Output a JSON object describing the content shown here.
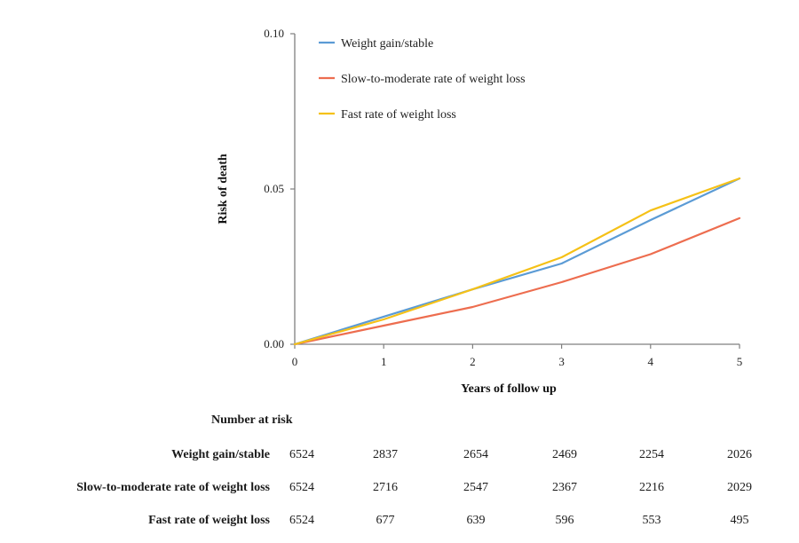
{
  "chart_data": {
    "type": "line",
    "title": "",
    "xlabel": "Years of follow up",
    "ylabel": "Risk of death",
    "xlim": [
      0,
      5
    ],
    "ylim": [
      0,
      0.1
    ],
    "x_ticks": [
      "0",
      "1",
      "2",
      "3",
      "4",
      "5"
    ],
    "y_ticks": [
      "0.00",
      "0.05",
      "0.10"
    ],
    "grid": false,
    "legend_position": "top-left",
    "x": [
      0,
      1,
      2,
      3,
      4,
      5
    ],
    "series": [
      {
        "name": "Weight gain/stable",
        "color": "#5b9bd5",
        "values": [
          0,
          0.0089,
          0.0177,
          0.026,
          0.04,
          0.0534
        ]
      },
      {
        "name": "Slow-to-moderate rate of weight loss",
        "color": "#ed6d4f",
        "values": [
          0,
          0.006,
          0.012,
          0.02,
          0.029,
          0.0406
        ]
      },
      {
        "name": "Fast rate of weight loss",
        "color": "#f5c117",
        "values": [
          0,
          0.008,
          0.0177,
          0.028,
          0.0431,
          0.0534
        ]
      }
    ]
  },
  "risk_table": {
    "title": "Number at risk",
    "rows": [
      {
        "label": "Weight gain/stable",
        "values": [
          "6524",
          "2837",
          "2654",
          "2469",
          "2254",
          "2026"
        ]
      },
      {
        "label": "Slow-to-moderate rate of weight loss",
        "values": [
          "6524",
          "2716",
          "2547",
          "2367",
          "2216",
          "2029"
        ]
      },
      {
        "label": "Fast rate of weight loss",
        "values": [
          "6524",
          "677",
          "639",
          "596",
          "553",
          "495"
        ]
      }
    ]
  }
}
